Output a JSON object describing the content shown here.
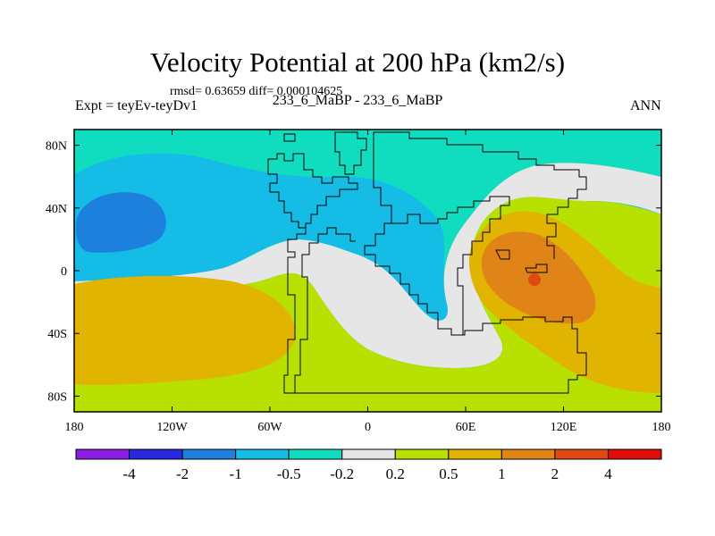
{
  "chart_data": {
    "type": "heatmap",
    "title": "Velocity Potential at 200 hPa (km2/s)",
    "stats_text": "rmsd= 0.63659 diff= 0.000104625",
    "left_label": "Expt = teyEv-teyDv1",
    "center_label": "233_6_MaBP - 233_6_MaBP",
    "right_label": "ANN",
    "x_ticks": [
      "180",
      "120W",
      "60W",
      "0",
      "60E",
      "120E",
      "180"
    ],
    "x_range": [
      -180,
      180
    ],
    "y_ticks": [
      "80N",
      "40N",
      "0",
      "40S",
      "80S"
    ],
    "y_range": [
      -90,
      90
    ],
    "colorbar": {
      "levels": [
        "-4",
        "-2",
        "-1",
        "-0.5",
        "-0.2",
        "0.2",
        "0.5",
        "1",
        "2",
        "4"
      ],
      "colors": [
        "#8a1ee0",
        "#2828e0",
        "#1c80dc",
        "#14bce6",
        "#10dcc0",
        "#e6e6e6",
        "#b8e000",
        "#e0b400",
        "#e08418",
        "#e04a10",
        "#e00c0c"
      ]
    },
    "fields": {
      "background": "#10dcc0",
      "regions": [
        {
          "name": "north-pacific-negative",
          "level": "-1 to -0.5"
        },
        {
          "name": "north-pacific-core",
          "level": "-2 to -1"
        },
        {
          "name": "southern-band-positive",
          "level": "0.2 to 0.5"
        },
        {
          "name": "south-pacific-positive",
          "level": "0.5 to 1"
        },
        {
          "name": "indian-ocean-maximum",
          "level": "1 to 2"
        },
        {
          "name": "indian-ocean-core",
          "level": "2 to 4"
        }
      ]
    }
  }
}
